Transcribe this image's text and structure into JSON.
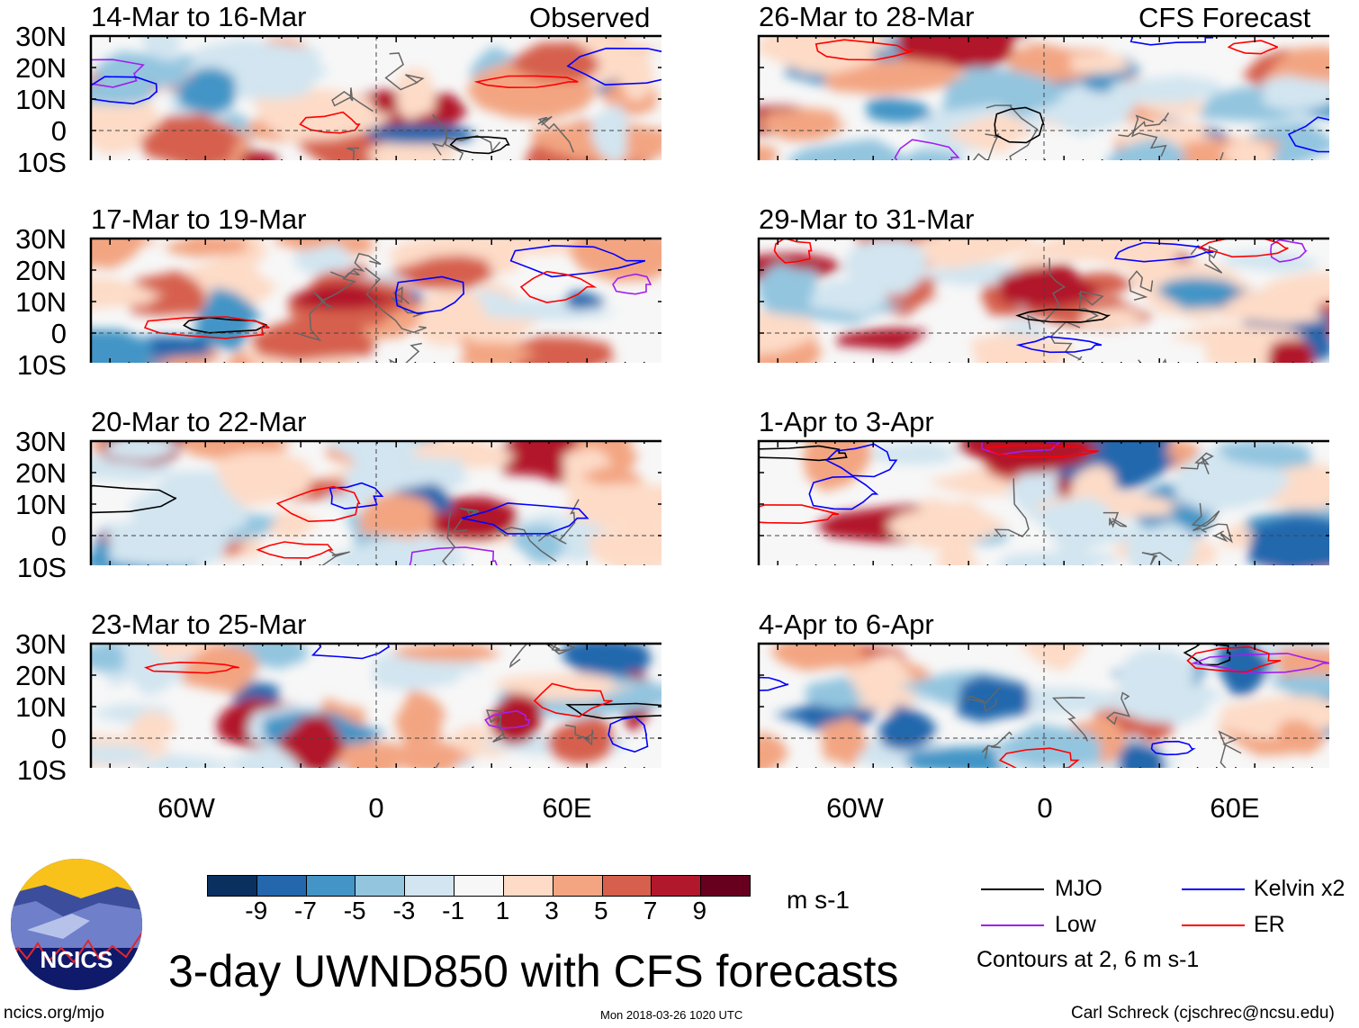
{
  "figure": {
    "title": "3-day UWND850 with CFS forecasts",
    "left_column_label": "Observed",
    "right_column_label": "CFS Forecast",
    "lat_labels": [
      "30N",
      "20N",
      "10N",
      "0",
      "10S"
    ],
    "lon_labels": [
      "60W",
      "0",
      "60E"
    ],
    "panels_left": [
      {
        "title": "14-Mar to 16-Mar"
      },
      {
        "title": "17-Mar to 19-Mar"
      },
      {
        "title": "20-Mar to 22-Mar"
      },
      {
        "title": "23-Mar to 25-Mar"
      }
    ],
    "panels_right": [
      {
        "title": "26-Mar to 28-Mar"
      },
      {
        "title": "29-Mar to 31-Mar"
      },
      {
        "title": "1-Apr to 3-Apr"
      },
      {
        "title": "4-Apr to 6-Apr"
      }
    ]
  },
  "colorbar": {
    "colors": [
      "#0a3060",
      "#2467ad",
      "#4295c6",
      "#93c5df",
      "#d2e5f0",
      "#f7f7f7",
      "#fddbc7",
      "#f3a582",
      "#d6604d",
      "#b2182b",
      "#67001f"
    ],
    "labels": [
      "-9",
      "-7",
      "-5",
      "-3",
      "-1",
      "1",
      "3",
      "5",
      "7",
      "9"
    ],
    "units": "m s-1"
  },
  "legend": {
    "items": [
      {
        "label": "MJO",
        "color": "#000000"
      },
      {
        "label": "Kelvin x2",
        "color": "#0000ff"
      },
      {
        "label": "Low",
        "color": "#a020f0"
      },
      {
        "label": "ER",
        "color": "#ff0000"
      }
    ],
    "note": "Contours at 2, 6 m s-1"
  },
  "footer": {
    "left": "ncics.org/mjo",
    "center": "Mon 2018-03-26 1020 UTC",
    "right": "Carl Schreck (cjschrec@ncsu.edu)",
    "logo_text": "NCICS"
  }
}
